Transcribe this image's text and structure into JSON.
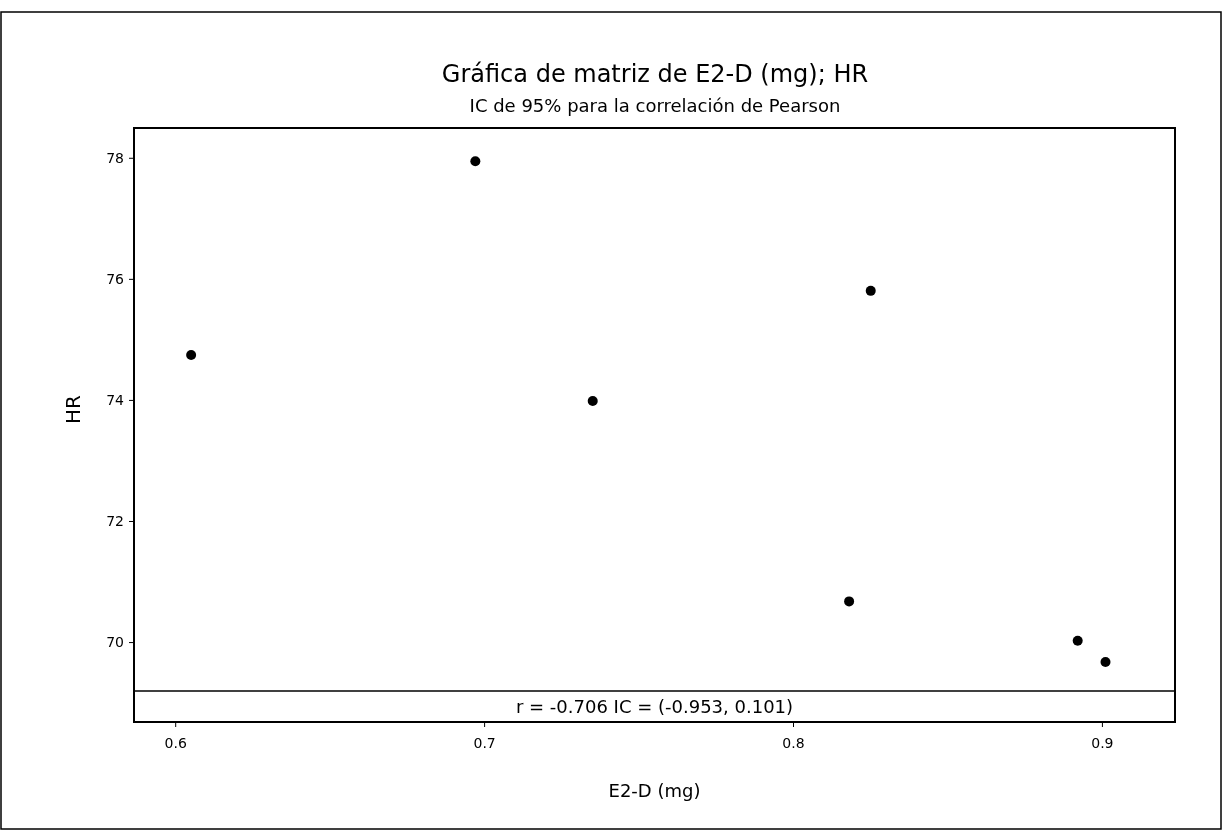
{
  "chart_data": {
    "type": "scatter",
    "title": "Gráfica de matriz de E2-D (mg); HR",
    "subtitle": "IC de 95% para la correlación de Pearson",
    "xlabel": "E2-D (mg)",
    "ylabel": "HR",
    "x": [
      0.605,
      0.697,
      0.735,
      0.818,
      0.825,
      0.892,
      0.901
    ],
    "values": [
      74.75,
      77.95,
      73.99,
      70.68,
      75.81,
      70.03,
      69.68
    ],
    "color": "#000000",
    "marker": "circle",
    "xlim": [
      0.5865,
      0.9235
    ],
    "xticks": [
      0.6,
      0.7,
      0.8,
      0.9
    ],
    "ylim": [
      69.2,
      78.5
    ],
    "yticks": [
      70,
      72,
      74,
      76,
      78
    ],
    "annotations": [
      "r = -0.706  IC = (-0.953, 0.101)"
    ]
  }
}
